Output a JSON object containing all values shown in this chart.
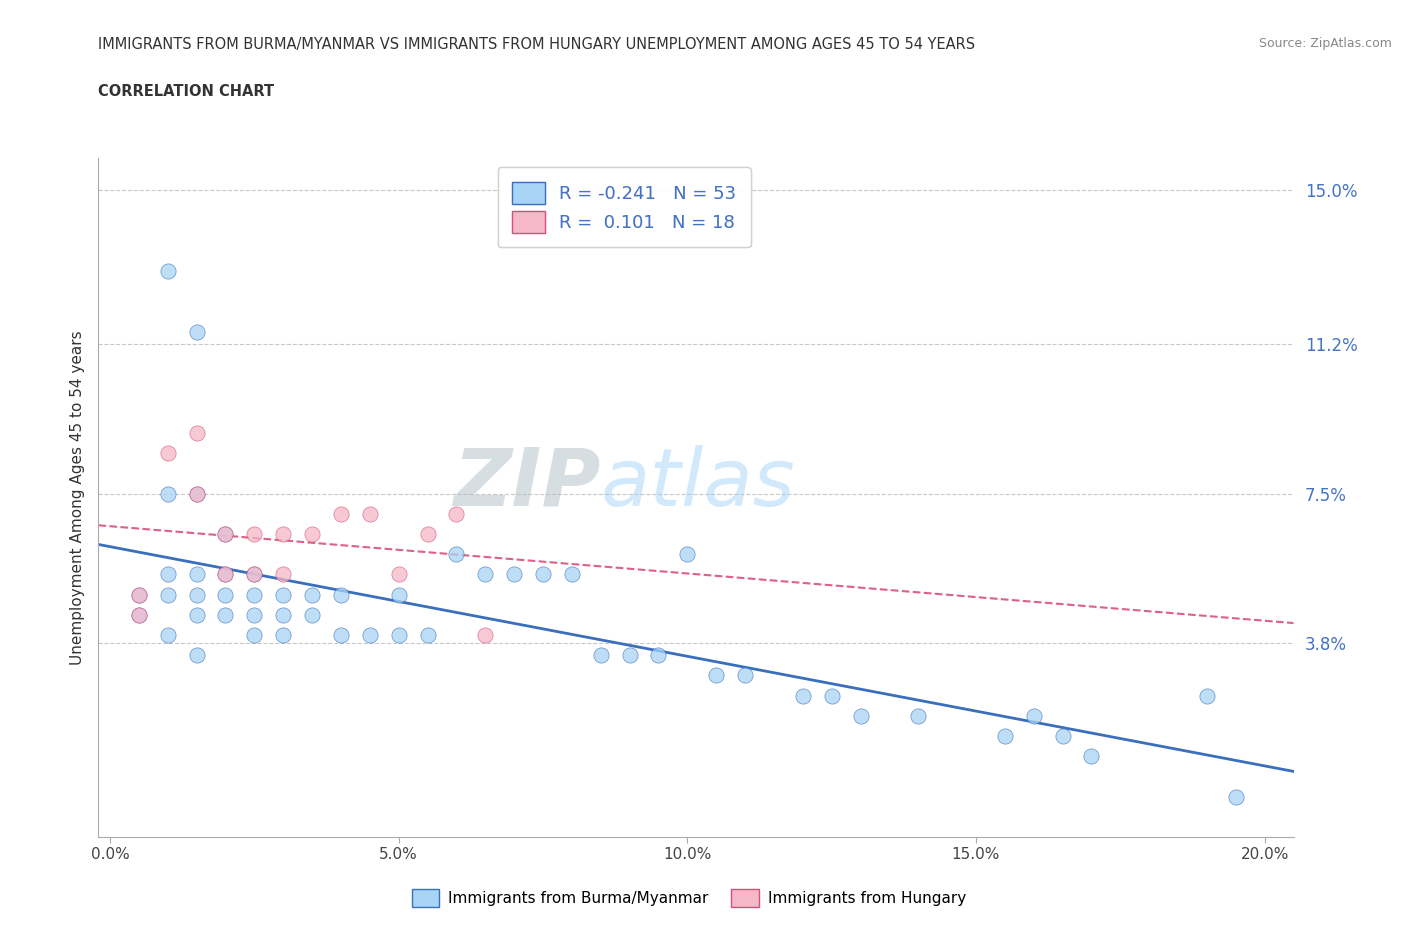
{
  "title_line1": "IMMIGRANTS FROM BURMA/MYANMAR VS IMMIGRANTS FROM HUNGARY UNEMPLOYMENT AMONG AGES 45 TO 54 YEARS",
  "title_line2": "CORRELATION CHART",
  "source_text": "Source: ZipAtlas.com",
  "ylabel": "Unemployment Among Ages 45 to 54 years",
  "xlim": [
    -0.002,
    0.205
  ],
  "ylim": [
    -0.01,
    0.158
  ],
  "ytick_vals": [
    0.038,
    0.075,
    0.112,
    0.15
  ],
  "ytick_labels": [
    "3.8%",
    "7.5%",
    "11.2%",
    "15.0%"
  ],
  "xtick_vals": [
    0.0,
    0.05,
    0.1,
    0.15,
    0.2
  ],
  "xtick_labels": [
    "0.0%",
    "5.0%",
    "10.0%",
    "15.0%",
    "20.0%"
  ],
  "watermark_part1": "ZIP",
  "watermark_part2": "atlas",
  "legend_label1": "Immigrants from Burma/Myanmar",
  "legend_label2": "Immigrants from Hungary",
  "R1": "-0.241",
  "N1": "53",
  "R2": "0.101",
  "N2": "18",
  "color1": "#a8d4f5",
  "color2": "#f5b8c8",
  "trendline1_color": "#3a6fbd",
  "trendline2_color": "#d94f7a",
  "trendline1_linestyle": "solid",
  "trendline2_linestyle": "dashed",
  "tick_color": "#4472c4",
  "background_color": "#ffffff",
  "grid_color": "#c8c8c8",
  "burma_x": [
    0.005,
    0.01,
    0.01,
    0.01,
    0.01,
    0.015,
    0.015,
    0.015,
    0.015,
    0.015,
    0.02,
    0.02,
    0.02,
    0.02,
    0.025,
    0.025,
    0.025,
    0.025,
    0.03,
    0.03,
    0.03,
    0.035,
    0.035,
    0.04,
    0.04,
    0.045,
    0.05,
    0.05,
    0.055,
    0.06,
    0.065,
    0.07,
    0.075,
    0.08,
    0.085,
    0.09,
    0.095,
    0.1,
    0.105,
    0.11,
    0.12,
    0.125,
    0.13,
    0.14,
    0.155,
    0.16,
    0.165,
    0.17,
    0.005,
    0.01,
    0.015,
    0.19,
    0.195
  ],
  "burma_y": [
    0.05,
    0.13,
    0.075,
    0.055,
    0.05,
    0.115,
    0.075,
    0.055,
    0.05,
    0.045,
    0.065,
    0.055,
    0.05,
    0.045,
    0.055,
    0.05,
    0.045,
    0.04,
    0.05,
    0.045,
    0.04,
    0.05,
    0.045,
    0.05,
    0.04,
    0.04,
    0.05,
    0.04,
    0.04,
    0.06,
    0.055,
    0.055,
    0.055,
    0.055,
    0.035,
    0.035,
    0.035,
    0.06,
    0.03,
    0.03,
    0.025,
    0.025,
    0.02,
    0.02,
    0.015,
    0.02,
    0.015,
    0.01,
    0.045,
    0.04,
    0.035,
    0.025,
    0.0
  ],
  "hungary_x": [
    0.005,
    0.005,
    0.01,
    0.015,
    0.015,
    0.02,
    0.02,
    0.025,
    0.025,
    0.03,
    0.03,
    0.035,
    0.04,
    0.045,
    0.05,
    0.055,
    0.06,
    0.065
  ],
  "hungary_y": [
    0.05,
    0.045,
    0.085,
    0.09,
    0.075,
    0.065,
    0.055,
    0.065,
    0.055,
    0.065,
    0.055,
    0.065,
    0.07,
    0.07,
    0.055,
    0.065,
    0.07,
    0.04
  ]
}
